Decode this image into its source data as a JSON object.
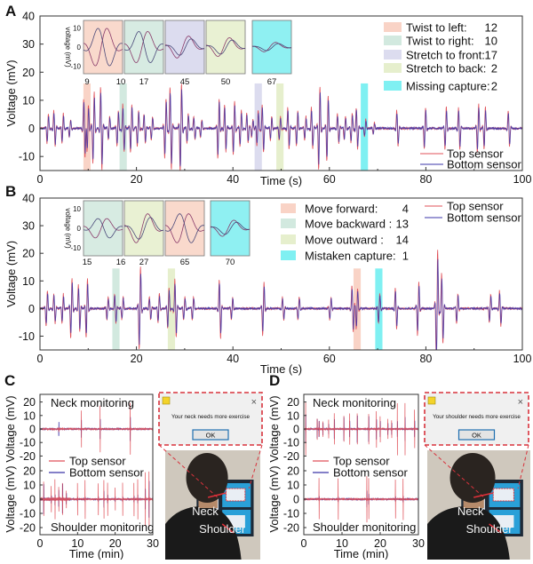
{
  "colors": {
    "top_sensor": "#e0525a",
    "bottom_sensor": "#3b34a8",
    "dialog_border": "#d8323c"
  },
  "chart_data": [
    {
      "panel": "A",
      "type": "line",
      "xlabel": "Time (s)",
      "ylabel": "Voltage (mV)",
      "xlim": [
        0,
        100
      ],
      "ylim": [
        -15,
        40
      ],
      "xticks": [
        0,
        20,
        40,
        60,
        80,
        100
      ],
      "yticks": [
        -10,
        0,
        10,
        20,
        30,
        40
      ],
      "series": [
        "Top sensor",
        "Bottom sensor"
      ],
      "events": [
        [
          1.6,
          5
        ],
        [
          3,
          6
        ],
        [
          4.7,
          5
        ],
        [
          6.2,
          3
        ],
        [
          9.2,
          10
        ],
        [
          9.9,
          8
        ],
        [
          11.1,
          12
        ],
        [
          12.7,
          14
        ],
        [
          14.3,
          4
        ],
        [
          16.1,
          6
        ],
        [
          17.3,
          8
        ],
        [
          18.9,
          8
        ],
        [
          20.3,
          6
        ],
        [
          21.7,
          5
        ],
        [
          23.2,
          4
        ],
        [
          26,
          10
        ],
        [
          27.1,
          14
        ],
        [
          29.2,
          15
        ],
        [
          30.6,
          5
        ],
        [
          32,
          4
        ],
        [
          33.4,
          3
        ],
        [
          37,
          10
        ],
        [
          38.4,
          8
        ],
        [
          40.2,
          9
        ],
        [
          41.6,
          6
        ],
        [
          43,
          5
        ],
        [
          44,
          3
        ],
        [
          45.1,
          6
        ],
        [
          46.2,
          8
        ],
        [
          47.9,
          4
        ],
        [
          49.7,
          4
        ],
        [
          51.5,
          7
        ],
        [
          53.3,
          6
        ],
        [
          55,
          4
        ],
        [
          56.4,
          7
        ],
        [
          57.9,
          14
        ],
        [
          59.6,
          11
        ],
        [
          61.8,
          5
        ],
        [
          63.2,
          4
        ],
        [
          64.6,
          5
        ],
        [
          65.7,
          7
        ],
        [
          67.4,
          3
        ],
        [
          69.2,
          2
        ],
        [
          74.1,
          6
        ],
        [
          79.8,
          7
        ],
        [
          84.1,
          7
        ],
        [
          86.9,
          7
        ],
        [
          90.8,
          8
        ],
        [
          92.2,
          7
        ],
        [
          97.2,
          6
        ]
      ],
      "highlights": [
        {
          "label": "Twist to left:",
          "count": "12",
          "from": 9,
          "to": 10.5,
          "color": "#f9d3c6"
        },
        {
          "label": "Twist to right:",
          "count": "10",
          "from": 16.5,
          "to": 18,
          "color": "#d2e9df"
        },
        {
          "label": "Stretch to front:",
          "count": "17",
          "from": 44.5,
          "to": 46,
          "color": "#dcdcef"
        },
        {
          "label": "Stretch to back:",
          "count": "2",
          "from": 49,
          "to": 50.5,
          "color": "#e6efcd"
        },
        {
          "label": "Missing capture:",
          "count": "2",
          "from": 66.5,
          "to": 68,
          "color": "#7ff0f2"
        }
      ],
      "inset": {
        "ylabel": "voltage (mV)",
        "yticks": [
          -10,
          0,
          10
        ],
        "ylim": [
          -14,
          14
        ],
        "panels": [
          {
            "labels": [
              "9",
              "10"
            ],
            "color": "#f9d9cc",
            "amp": 12,
            "invert": true
          },
          {
            "labels": [
              "17"
            ],
            "color": "#d7ebe2",
            "amp": 10,
            "invert": true
          },
          {
            "labels": [
              "45"
            ],
            "color": "#dcdcef",
            "amp": 7,
            "invert": false
          },
          {
            "labels": [
              "50"
            ],
            "color": "#e9f1d3",
            "amp": 6,
            "invert": false
          },
          {
            "labels": [
              "67"
            ],
            "color": "#8ff0f2",
            "amp": 3,
            "invert": false
          }
        ]
      }
    },
    {
      "panel": "B",
      "type": "line",
      "xlabel": "Time (s)",
      "ylabel": "Voltage (mV)",
      "xlim": [
        0,
        100
      ],
      "ylim": [
        -15,
        40
      ],
      "xticks": [
        0,
        20,
        40,
        60,
        80,
        100
      ],
      "yticks": [
        -10,
        0,
        10,
        20,
        30,
        40
      ],
      "series": [
        "Top sensor",
        "Bottom sensor"
      ],
      "events": [
        [
          1.4,
          6
        ],
        [
          3,
          5
        ],
        [
          4.7,
          5
        ],
        [
          6.5,
          10
        ],
        [
          8.1,
          8
        ],
        [
          9.7,
          10
        ],
        [
          14,
          4
        ],
        [
          15.6,
          5
        ],
        [
          17.1,
          4
        ],
        [
          20.7,
          14
        ],
        [
          22.8,
          4
        ],
        [
          24.6,
          5
        ],
        [
          26.6,
          7
        ],
        [
          28.1,
          10
        ],
        [
          29.9,
          4
        ],
        [
          31.7,
          4
        ],
        [
          37.3,
          10
        ],
        [
          39.8,
          4
        ],
        [
          46.3,
          9
        ],
        [
          50.4,
          4
        ],
        [
          53.6,
          4
        ],
        [
          60.2,
          4
        ],
        [
          64.8,
          8
        ],
        [
          65.7,
          7
        ],
        [
          70.3,
          5
        ],
        [
          73.8,
          7
        ],
        [
          78.4,
          9
        ],
        [
          82.3,
          20
        ],
        [
          83.4,
          12
        ],
        [
          86.5,
          5
        ],
        [
          93.3,
          5
        ],
        [
          95.4,
          6
        ]
      ],
      "highlights": [
        {
          "label": "Move forward:",
          "count": "4",
          "from": 65,
          "to": 66.5,
          "color": "#f9d3c6"
        },
        {
          "label": "Move backward :",
          "count": "13",
          "from": 15,
          "to": 16.5,
          "color": "#d2e9df"
        },
        {
          "label": "Move outward :",
          "count": "14",
          "from": 26.5,
          "to": 28,
          "color": "#e6efcd"
        },
        {
          "label": "Mistaken capture:",
          "count": "1",
          "from": 69.5,
          "to": 71,
          "color": "#7ff0f2"
        }
      ],
      "inset": {
        "ylabel": "voltage (mV)",
        "yticks": [
          -10,
          0,
          10
        ],
        "ylim": [
          -14,
          14
        ],
        "panels": [
          {
            "labels": [
              "15",
              "16"
            ],
            "color": "#d7ebe2",
            "amp": 6,
            "invert": true
          },
          {
            "labels": [
              "27"
            ],
            "color": "#e9f1d3",
            "amp": 9,
            "invert": false
          },
          {
            "labels": [
              "65"
            ],
            "color": "#f9d9cc",
            "amp": 9,
            "invert": true
          },
          {
            "labels": [
              "70"
            ],
            "color": "#8ff0f2",
            "amp": 5,
            "invert": false
          }
        ]
      }
    },
    {
      "panel": "C",
      "part": "neck",
      "type": "line",
      "title": "Neck monitoring",
      "ylabel": "Voltage (mV)",
      "xlim": [
        0,
        30
      ],
      "ylim": [
        -25,
        25
      ],
      "yticks": [
        -20,
        -10,
        0,
        10,
        20
      ],
      "series": [
        "Top sensor",
        "Bottom sensor"
      ],
      "events": [
        [
          5,
          2,
          7
        ],
        [
          11,
          14,
          9
        ],
        [
          16,
          18,
          10
        ],
        [
          24,
          20,
          12
        ]
      ]
    },
    {
      "panel": "C",
      "part": "shoulder",
      "type": "line",
      "title": "Shoulder monitoring",
      "xlabel": "Time (min)",
      "ylabel": "Voltage (mV)",
      "xlim": [
        0,
        30
      ],
      "ylim": [
        -25,
        25
      ],
      "xticks": [
        0,
        10,
        20,
        30
      ],
      "yticks": [
        -20,
        -10,
        0,
        10,
        20
      ],
      "events": [
        [
          1,
          12,
          14
        ],
        [
          3,
          10,
          3
        ],
        [
          4,
          15,
          5
        ],
        [
          5,
          8,
          8
        ],
        [
          6,
          12,
          14
        ],
        [
          7,
          6,
          6
        ],
        [
          10,
          12,
          2
        ],
        [
          12,
          14,
          2
        ],
        [
          15.5,
          12,
          2
        ],
        [
          17,
          14,
          8
        ],
        [
          18,
          12,
          4
        ],
        [
          20,
          8,
          2
        ],
        [
          22,
          12,
          2
        ],
        [
          25,
          12,
          3
        ],
        [
          26,
          15,
          4
        ],
        [
          28,
          20,
          10
        ],
        [
          29,
          20,
          18
        ]
      ]
    },
    {
      "panel": "D",
      "part": "neck",
      "type": "line",
      "title": "Neck monitoring",
      "ylabel": "Voltage (mV)",
      "xlim": [
        0,
        30
      ],
      "ylim": [
        -25,
        25
      ],
      "yticks": [
        -20,
        -10,
        0,
        10,
        20
      ],
      "series": [
        "Top sensor",
        "Bottom sensor"
      ],
      "events": [
        [
          0.5,
          20,
          15
        ],
        [
          3.5,
          8,
          10
        ],
        [
          4,
          6,
          8
        ],
        [
          5,
          6,
          6
        ],
        [
          6.5,
          7,
          5
        ],
        [
          8,
          12,
          10
        ],
        [
          10.5,
          10,
          12
        ],
        [
          12,
          12,
          8
        ],
        [
          14,
          12,
          14
        ],
        [
          17,
          12,
          13
        ],
        [
          19,
          14,
          10
        ],
        [
          20,
          10,
          8
        ],
        [
          22,
          8,
          6
        ],
        [
          23,
          7,
          6
        ],
        [
          24.5,
          20,
          8
        ],
        [
          26.5,
          20,
          12
        ],
        [
          29,
          15,
          8
        ]
      ]
    },
    {
      "panel": "D",
      "part": "shoulder",
      "type": "line",
      "title": "Shoulder monitoring",
      "xlabel": "Time (min)",
      "ylabel": "Voltage (mV)",
      "xlim": [
        0,
        30
      ],
      "ylim": [
        -25,
        25
      ],
      "xticks": [
        0,
        10,
        20,
        30
      ],
      "yticks": [
        -20,
        -10,
        0,
        10,
        20
      ],
      "events": [
        [
          4,
          15,
          2
        ],
        [
          9,
          15,
          2
        ],
        [
          16.5,
          17,
          8
        ],
        [
          17,
          15,
          5
        ],
        [
          24,
          14,
          2
        ],
        [
          26,
          15,
          3
        ]
      ]
    }
  ],
  "dialogs": {
    "C": {
      "message": "Your neck needs more exercise",
      "ok": "OK",
      "close": "×"
    },
    "D": {
      "message": "Your shoulder needs more exercise",
      "ok": "OK",
      "close": "×"
    }
  },
  "photo_labels": {
    "neck": "Neck",
    "shoulder": "Shoulder"
  }
}
